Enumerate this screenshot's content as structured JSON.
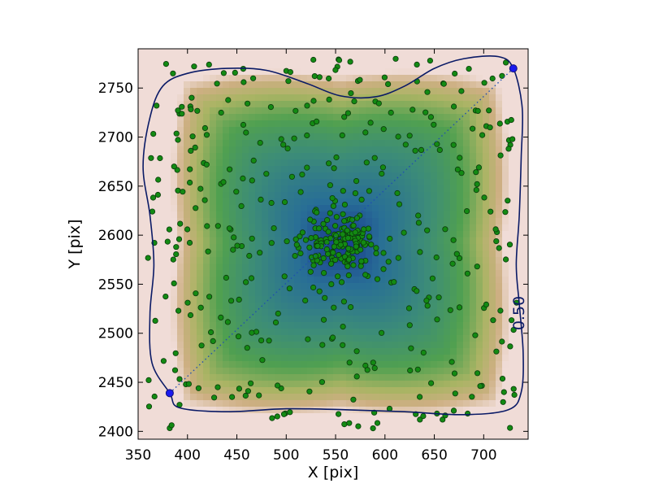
{
  "chart_data": {
    "type": "scatter",
    "title": "",
    "xlabel": "X [pix]",
    "ylabel": "Y [pix]",
    "xlim": [
      350,
      745
    ],
    "ylim": [
      2392,
      2790
    ],
    "x_ticks": [
      350,
      400,
      450,
      500,
      550,
      600,
      650,
      700
    ],
    "y_ticks": [
      2400,
      2450,
      2500,
      2550,
      2600,
      2650,
      2700,
      2750
    ],
    "grid": false,
    "legend": "none",
    "background": {
      "type": "density-heatmap",
      "colormap": "gist_earth_r",
      "peak": [
        555,
        2592
      ]
    },
    "contour": {
      "level_label": "0.50",
      "color": "#0a1a66"
    },
    "line_endpoints": [
      {
        "x": 382,
        "y": 2439
      },
      {
        "x": 730,
        "y": 2770
      }
    ],
    "points": {
      "color": "#138a13",
      "edge_color": "#0b3a0b",
      "count": 520,
      "center": [
        555,
        2592
      ]
    }
  }
}
